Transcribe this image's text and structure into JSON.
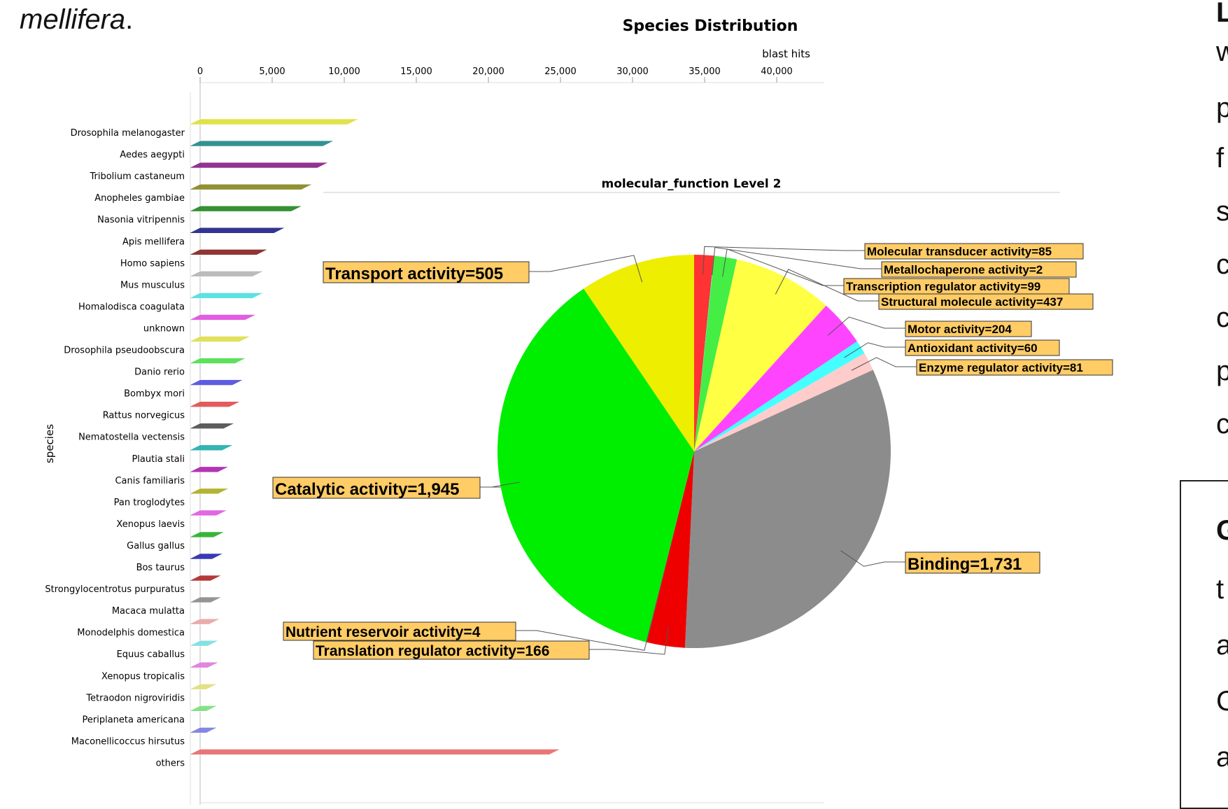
{
  "caption": {
    "text": "mellifera",
    "suffix": "."
  },
  "right_text": {
    "line1": "L",
    "line2": "w",
    "line3": "p",
    "line4": "f",
    "line5": "s",
    "line6": "c",
    "line7": "c",
    "line8": "p",
    "line9": "c",
    "box_line1": "G",
    "box_line2": "t",
    "box_line3": "a",
    "box_line4": "C",
    "box_line5": "a"
  },
  "chart_data": [
    {
      "type": "bar",
      "orientation": "horizontal",
      "title": "Species Distribution",
      "xlabel": "blast hits",
      "ylabel": "species",
      "xlim": [
        0,
        43000
      ],
      "x_ticks": [
        "0",
        "5,000",
        "10,000",
        "15,000",
        "20,000",
        "25,000",
        "30,000",
        "35,000",
        "40,000"
      ],
      "x_tick_values": [
        0,
        5000,
        10000,
        15000,
        20000,
        25000,
        30000,
        35000,
        40000
      ],
      "grid": false,
      "categories": [
        "Drosophila melanogaster",
        "Aedes aegypti",
        "Tribolium castaneum",
        "Anopheles gambiae",
        "Nasonia vitripennis",
        "Apis mellifera",
        "Homo sapiens",
        "Mus musculus",
        "Homalodisca coagulata",
        "unknown",
        "Drosophila pseudoobscura",
        "Danio rerio",
        "Bombyx mori",
        "Rattus norvegicus",
        "Nematostella vectensis",
        "Plautia stali",
        "Canis familiaris",
        "Pan troglodytes",
        "Xenopus laevis",
        "Gallus gallus",
        "Bos taurus",
        "Strongylocentrotus purpuratus",
        "Macaca mulatta",
        "Monodelphis domestica",
        "Equus caballus",
        "Xenopus tropicalis",
        "Tetraodon nigroviridis",
        "Periplaneta americana",
        "Maconellicoccus hirsutus",
        "others"
      ],
      "values": [
        11000,
        9300,
        8900,
        7800,
        7100,
        5900,
        4700,
        4400,
        4400,
        3900,
        3500,
        3200,
        3000,
        2800,
        2400,
        2300,
        2000,
        2000,
        1900,
        1700,
        1600,
        1500,
        1500,
        1400,
        1300,
        1300,
        1200,
        1200,
        1200,
        25000
      ],
      "colors": [
        "#e0e040",
        "#2a8c8c",
        "#8c2a8c",
        "#8c8c2a",
        "#2a8c2a",
        "#2a2a8c",
        "#8c2a2a",
        "#b8b8b8",
        "#55e0e0",
        "#e055e0",
        "#e0e055",
        "#55e055",
        "#5555e0",
        "#e05555",
        "#555555",
        "#2ab0b0",
        "#b02ab0",
        "#b0b02a",
        "#e060e0",
        "#30b030",
        "#3030b0",
        "#b03030",
        "#909090",
        "#e8a8a8",
        "#80e0e0",
        "#e080e0",
        "#e0e080",
        "#80e080",
        "#8080e0",
        "#e87070"
      ]
    },
    {
      "type": "pie",
      "title": "molecular_function Level 2",
      "slices": [
        {
          "label": "Molecular transducer activity=85",
          "value": 85,
          "color": "#ff3333"
        },
        {
          "label": "Metallochaperone activity=2",
          "value": 2,
          "color": "#33ffff"
        },
        {
          "label": "Transcription regulator activity=99",
          "value": 99,
          "color": "#44ee44"
        },
        {
          "label": "Structural molecule activity=437",
          "value": 437,
          "color": "#ffff44"
        },
        {
          "label": "Motor activity=204",
          "value": 204,
          "color": "#ff44ff"
        },
        {
          "label": "Antioxidant activity=60",
          "value": 60,
          "color": "#44ffff"
        },
        {
          "label": "Enzyme regulator activity=81",
          "value": 81,
          "color": "#ffcccc"
        },
        {
          "label": "Binding=1,731",
          "value": 1731,
          "color": "#8c8c8c"
        },
        {
          "label": "Translation regulator activity=166",
          "value": 166,
          "color": "#ee0000"
        },
        {
          "label": "Nutrient reservoir activity=4",
          "value": 4,
          "color": "#555555"
        },
        {
          "label": "Catalytic activity=1,945",
          "value": 1945,
          "color": "#00ee00"
        },
        {
          "label": "Transport activity=505",
          "value": 505,
          "color": "#eeee00"
        }
      ],
      "label_box_color": "#ffcc66"
    }
  ]
}
